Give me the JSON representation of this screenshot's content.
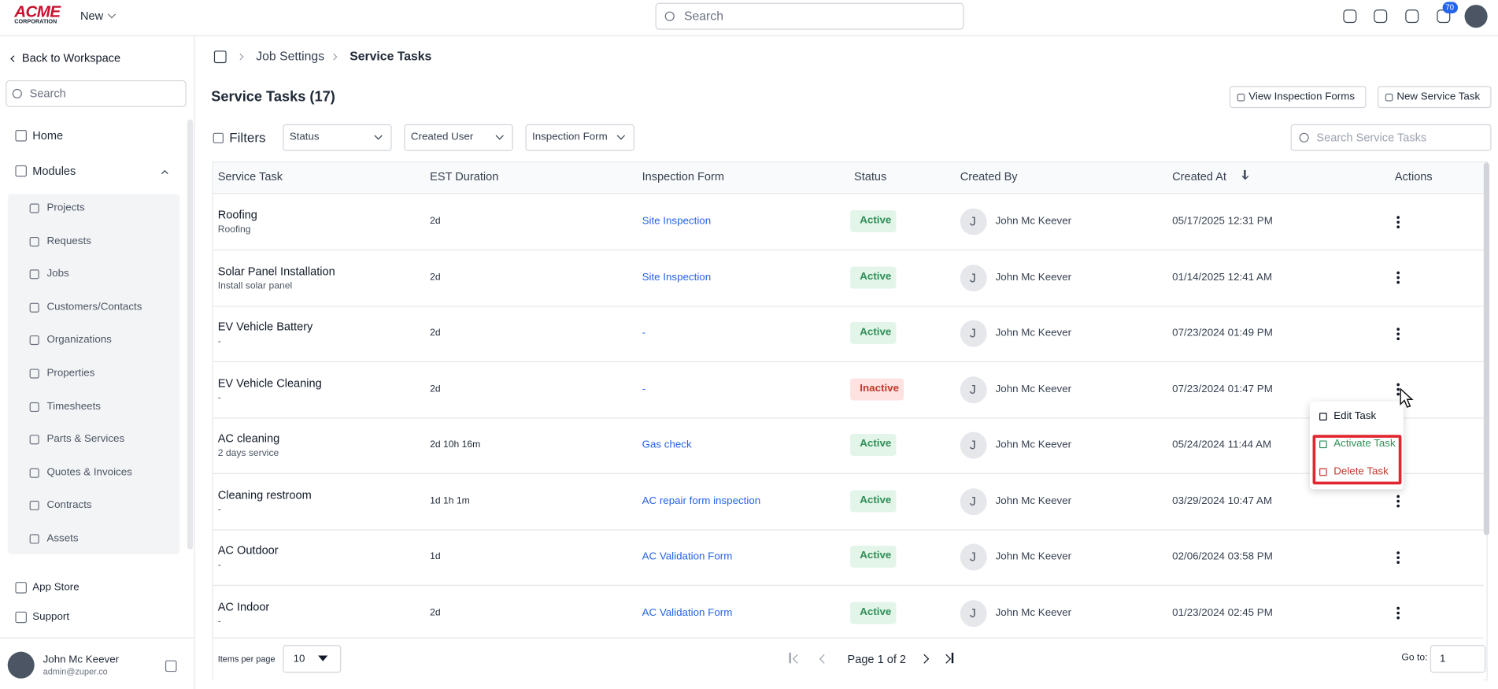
{
  "header": {
    "logo": "ACME",
    "logo_sub": "CORPORATION",
    "new_button": "New",
    "search_placeholder": "Search",
    "notification_count": "70"
  },
  "sidebar": {
    "back": "Back to Workspace",
    "search_placeholder": "Search",
    "home": "Home",
    "modules_label": "Modules",
    "modules": [
      "Projects",
      "Requests",
      "Jobs",
      "Customers/Contacts",
      "Organizations",
      "Properties",
      "Timesheets",
      "Parts & Services",
      "Quotes & Invoices",
      "Contracts",
      "Assets"
    ],
    "bottom": [
      "App Store",
      "Support"
    ],
    "user": {
      "name": "John Mc Keever",
      "email": "admin@zuper.co"
    }
  },
  "breadcrumb": [
    "Job Settings",
    "Service Tasks"
  ],
  "page": {
    "title": "Service Tasks (17)",
    "buttons": [
      "View Inspection Forms",
      "New Service Task"
    ],
    "filters_label": "Filters",
    "filters": [
      "Status",
      "Created User",
      "Inspection Form"
    ],
    "search_placeholder": "Search Service Tasks"
  },
  "table": {
    "columns": [
      "Service Task",
      "EST Duration",
      "Inspection Form",
      "Status",
      "Created By",
      "Created At",
      "Actions"
    ],
    "rows": [
      [
        "Roofing",
        "Roofing",
        "2d",
        "Site Inspection",
        "Active",
        "J",
        "John Mc Keever",
        "05/17/2025 12:31 PM"
      ],
      [
        "Solar Panel Installation",
        "Install solar panel",
        "2d",
        "Site Inspection",
        "Active",
        "J",
        "John Mc Keever",
        "01/14/2025 12:41 AM"
      ],
      [
        "EV Vehicle Battery",
        "-",
        "2d",
        "-",
        "Active",
        "J",
        "John Mc Keever",
        "07/23/2024 01:49 PM"
      ],
      [
        "EV Vehicle Cleaning",
        "-",
        "2d",
        "-",
        "Inactive",
        "J",
        "John Mc Keever",
        "07/23/2024 01:47 PM"
      ],
      [
        "AC cleaning",
        "2 days service",
        "2d 10h 16m",
        "Gas check",
        "Active",
        "J",
        "John Mc Keever",
        "05/24/2024 11:44 AM"
      ],
      [
        "Cleaning restroom",
        "-",
        "1d 1h 1m",
        "AC repair form inspection",
        "Active",
        "J",
        "John Mc Keever",
        "03/29/2024 10:47 AM"
      ],
      [
        "AC Outdoor",
        "-",
        "1d",
        "AC Validation Form",
        "Active",
        "J",
        "John Mc Keever",
        "02/06/2024 03:58 PM"
      ],
      [
        "AC Indoor",
        "-",
        "2d",
        "AC Validation Form",
        "Active",
        "J",
        "John Mc Keever",
        "01/23/2024 02:45 PM"
      ]
    ]
  },
  "menu": [
    "Edit Task",
    "Activate Task",
    "Delete Task"
  ],
  "pagination": {
    "items_label": "Items per page",
    "per_page": "10",
    "page": "Page 1 of 2",
    "goto_label": "Go to:",
    "goto": "1"
  }
}
